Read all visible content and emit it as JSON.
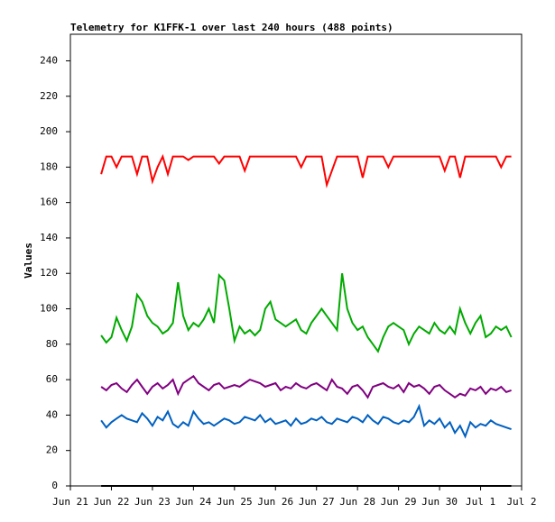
{
  "chart_data": {
    "type": "line",
    "title": "Telemetry for K1FFK-1 over last 240 hours (488 points)",
    "y_label": "Values",
    "x": [
      0.75,
      0.875,
      1,
      1.125,
      1.25,
      1.375,
      1.5,
      1.625,
      1.75,
      1.875,
      2,
      2.125,
      2.25,
      2.375,
      2.5,
      2.625,
      2.75,
      2.875,
      3,
      3.125,
      3.25,
      3.375,
      3.5,
      3.625,
      3.75,
      3.875,
      4,
      4.125,
      4.25,
      4.375,
      4.5,
      4.625,
      4.75,
      4.875,
      5,
      5.125,
      5.25,
      5.375,
      5.5,
      5.625,
      5.75,
      5.875,
      6,
      6.125,
      6.25,
      6.375,
      6.5,
      6.625,
      6.75,
      6.875,
      7,
      7.125,
      7.25,
      7.375,
      7.5,
      7.625,
      7.75,
      7.875,
      8,
      8.125,
      8.25,
      8.375,
      8.5,
      8.625,
      8.75,
      8.875,
      9,
      9.125,
      9.25,
      9.375,
      9.5,
      9.625,
      9.75,
      9.875,
      10,
      10.125,
      10.25,
      10.375,
      10.5,
      10.625,
      10.75
    ],
    "series": [
      {
        "color": "#ff0000",
        "values": [
          176,
          186,
          186,
          180,
          186,
          186,
          186,
          176,
          186,
          186,
          172,
          180,
          186,
          176,
          186,
          186,
          186,
          184,
          186,
          186,
          186,
          186,
          186,
          182,
          186,
          186,
          186,
          186,
          178,
          186,
          186,
          186,
          186,
          186,
          186,
          186,
          186,
          186,
          186,
          180,
          186,
          186,
          186,
          186,
          170,
          178,
          186,
          186,
          186,
          186,
          186,
          174,
          186,
          186,
          186,
          186,
          180,
          186,
          186,
          186,
          186,
          186,
          186,
          186,
          186,
          186,
          186,
          178,
          186,
          186,
          174,
          186,
          186,
          186,
          186,
          186,
          186,
          186,
          180,
          186,
          186
        ]
      },
      {
        "color": "#00aa00",
        "values": [
          85,
          81,
          84,
          95,
          88,
          82,
          90,
          108,
          104,
          96,
          92,
          90,
          86,
          88,
          92,
          115,
          96,
          88,
          92,
          90,
          94,
          100,
          92,
          119,
          116,
          100,
          82,
          90,
          86,
          88,
          85,
          88,
          100,
          104,
          94,
          92,
          90,
          92,
          94,
          88,
          86,
          92,
          96,
          100,
          96,
          92,
          88,
          120,
          100,
          92,
          88,
          90,
          84,
          80,
          76,
          84,
          90,
          92,
          90,
          88,
          80,
          86,
          90,
          88,
          86,
          92,
          88,
          86,
          90,
          86,
          100,
          92,
          86,
          92,
          96,
          84,
          86,
          90,
          88,
          90,
          84
        ]
      },
      {
        "color": "#800080",
        "values": [
          56,
          54,
          57,
          58,
          55,
          53,
          57,
          60,
          56,
          52,
          56,
          58,
          55,
          57,
          60,
          52,
          58,
          60,
          62,
          58,
          56,
          54,
          57,
          58,
          55,
          56,
          57,
          56,
          58,
          60,
          59,
          58,
          56,
          57,
          58,
          54,
          56,
          55,
          58,
          56,
          55,
          57,
          58,
          56,
          54,
          60,
          56,
          55,
          52,
          56,
          57,
          54,
          50,
          56,
          57,
          58,
          56,
          55,
          57,
          53,
          58,
          56,
          57,
          55,
          52,
          56,
          57,
          54,
          52,
          50,
          52,
          51,
          55,
          54,
          56,
          52,
          55,
          54,
          56,
          53,
          54
        ]
      },
      {
        "color": "#0060c0",
        "values": [
          37,
          33,
          36,
          38,
          40,
          38,
          37,
          36,
          41,
          38,
          34,
          39,
          37,
          42,
          35,
          33,
          36,
          34,
          42,
          38,
          35,
          36,
          34,
          36,
          38,
          37,
          35,
          36,
          39,
          38,
          37,
          40,
          36,
          38,
          35,
          36,
          37,
          34,
          38,
          35,
          36,
          38,
          37,
          39,
          36,
          35,
          38,
          37,
          36,
          39,
          38,
          36,
          40,
          37,
          35,
          39,
          38,
          36,
          35,
          37,
          36,
          39,
          45,
          34,
          37,
          35,
          38,
          33,
          36,
          30,
          34,
          28,
          36,
          33,
          35,
          34,
          37,
          35,
          34,
          33,
          32
        ]
      },
      {
        "color": "#000000",
        "values": [
          0,
          0,
          0,
          0,
          0,
          0,
          0,
          0,
          0,
          0,
          0,
          0,
          0,
          0,
          0,
          0,
          0,
          0,
          0,
          0,
          0,
          0,
          0,
          0,
          0,
          0,
          0,
          0,
          0,
          0,
          0,
          0,
          0,
          0,
          0,
          0,
          0,
          0,
          0,
          0,
          0,
          0,
          0,
          0,
          0,
          0,
          0,
          0,
          0,
          0,
          0,
          0,
          0,
          0,
          0,
          0,
          0,
          0,
          0,
          0,
          0,
          0,
          0,
          0,
          0,
          0,
          0,
          0,
          0,
          0,
          0,
          0,
          0,
          0,
          0,
          0,
          0,
          0,
          0,
          0,
          0
        ]
      }
    ],
    "xlim": [
      0,
      11
    ],
    "xticks": [
      {
        "value": 0,
        "label": "Jun 21"
      },
      {
        "value": 1,
        "label": "Jun 22"
      },
      {
        "value": 2,
        "label": "Jun 23"
      },
      {
        "value": 3,
        "label": "Jun 24"
      },
      {
        "value": 4,
        "label": "Jun 25"
      },
      {
        "value": 5,
        "label": "Jun 26"
      },
      {
        "value": 6,
        "label": "Jun 27"
      },
      {
        "value": 7,
        "label": "Jun 28"
      },
      {
        "value": 8,
        "label": "Jun 29"
      },
      {
        "value": 9,
        "label": "Jun 30"
      },
      {
        "value": 10,
        "label": "Jul 1"
      },
      {
        "value": 11,
        "label": "Jul 2"
      }
    ],
    "ylim": [
      0,
      255
    ],
    "yticks": [
      0,
      20,
      40,
      60,
      80,
      100,
      120,
      140,
      160,
      180,
      200,
      220,
      240
    ]
  }
}
